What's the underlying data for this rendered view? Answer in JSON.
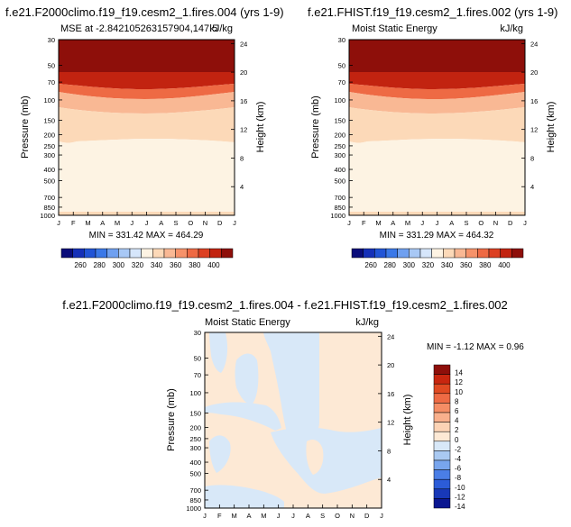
{
  "months": [
    "J",
    "F",
    "M",
    "A",
    "M",
    "J",
    "J",
    "A",
    "S",
    "O",
    "N",
    "D",
    "J"
  ],
  "pressure_ticks": [
    "30",
    "50",
    "70",
    "100",
    "150",
    "200",
    "250",
    "300",
    "400",
    "500",
    "700",
    "850",
    "1000"
  ],
  "panels": [
    {
      "title": "f.e21.F2000climo.f19_f19.cesm2_1.fires.004 (yrs 1-9)",
      "left_label": "MSE at -2.842105263157904,147.5",
      "right_label": "kJ/kg",
      "minmax": "MIN = 331.42 MAX = 464.29",
      "ylabel": "Pressure (mb)",
      "y2label": "Height (km)",
      "height_ticks": [
        "24",
        "20",
        "16",
        "12",
        "8",
        "4"
      ]
    },
    {
      "title": "f.e21.FHIST.f19_f19.cesm2_1.fires.002 (yrs 1-9)",
      "left_label": "Moist Static Energy",
      "right_label": "kJ/kg",
      "minmax": "MIN = 331.29 MAX = 464.32",
      "ylabel": "Pressure (mb)",
      "y2label": "Height (km)",
      "height_ticks": [
        "24",
        "20",
        "16",
        "12",
        "8",
        "4"
      ]
    }
  ],
  "diff_panel": {
    "title": "f.e21.F2000climo.f19_f19.cesm2_1.fires.004 - f.e21.FHIST.f19_f19.cesm2_1.fires.002",
    "left_label": "Moist Static Energy",
    "right_label": "kJ/kg",
    "minmax": "MIN = -1.12 MAX =  0.96",
    "ylabel": "Pressure (mb)",
    "y2label": "Height (km)",
    "height_ticks": [
      "24",
      "20",
      "16",
      "12",
      "8",
      "4"
    ]
  },
  "colorbar_top": {
    "labels": [
      "260",
      "280",
      "300",
      "320",
      "340",
      "360",
      "380",
      "400"
    ],
    "colors": [
      "#0a0d7a",
      "#1530b8",
      "#2154d6",
      "#3a78e8",
      "#6fa0f0",
      "#a8c8f5",
      "#d6e6fb",
      "#fdf3e3",
      "#fcd9b8",
      "#f9b894",
      "#f6926a",
      "#ee6a44",
      "#dc4022",
      "#c22310",
      "#8e0f0a"
    ]
  },
  "colorbar_diff": {
    "labels": [
      "14",
      "12",
      "10",
      "8",
      "6",
      "4",
      "2",
      "0",
      "-2",
      "-4",
      "-6",
      "-8",
      "-10",
      "-12",
      "-14"
    ],
    "colors": [
      "#8e0f0a",
      "#c8260f",
      "#e04a22",
      "#ee6a44",
      "#f58d65",
      "#f9b08c",
      "#fcd3b5",
      "#fde9d5",
      "#d8e8f8",
      "#a9c9f2",
      "#78a5ed",
      "#4a7ee6",
      "#2c5cd8",
      "#1838b8",
      "#0a1690"
    ]
  },
  "chart_data": [
    {
      "type": "heatmap",
      "title": "f.e21.F2000climo.f19_f19.cesm2_1.fires.004 (yrs 1-9)",
      "xlabel": "",
      "ylabel": "Pressure (mb)",
      "y2label": "Height (km)",
      "x": [
        "J",
        "F",
        "M",
        "A",
        "M",
        "J",
        "J",
        "A",
        "S",
        "O",
        "N",
        "D",
        "J"
      ],
      "y": [
        30,
        50,
        70,
        100,
        150,
        200,
        250,
        300,
        400,
        500,
        700,
        850,
        1000
      ],
      "units": "kJ/kg",
      "min": 331.42,
      "max": 464.29,
      "levels": [
        {
          "pressure_top": 30,
          "pressure_bottom": 60,
          "value_range": "400+"
        },
        {
          "pressure_top": 60,
          "pressure_bottom": 85,
          "value_range": "360-400"
        },
        {
          "pressure_top": 85,
          "pressure_bottom": 115,
          "value_range": "340-360"
        },
        {
          "pressure_top": 115,
          "pressure_bottom": 1000,
          "value_range": "330-340"
        }
      ]
    },
    {
      "type": "heatmap",
      "title": "f.e21.FHIST.f19_f19.cesm2_1.fires.002 (yrs 1-9)",
      "xlabel": "",
      "ylabel": "Pressure (mb)",
      "y2label": "Height (km)",
      "x": [
        "J",
        "F",
        "M",
        "A",
        "M",
        "J",
        "J",
        "A",
        "S",
        "O",
        "N",
        "D",
        "J"
      ],
      "y": [
        30,
        50,
        70,
        100,
        150,
        200,
        250,
        300,
        400,
        500,
        700,
        850,
        1000
      ],
      "units": "kJ/kg",
      "min": 331.29,
      "max": 464.32,
      "levels": [
        {
          "pressure_top": 30,
          "pressure_bottom": 60,
          "value_range": "400+"
        },
        {
          "pressure_top": 60,
          "pressure_bottom": 85,
          "value_range": "360-400"
        },
        {
          "pressure_top": 85,
          "pressure_bottom": 115,
          "value_range": "340-360"
        },
        {
          "pressure_top": 115,
          "pressure_bottom": 1000,
          "value_range": "330-340"
        }
      ]
    },
    {
      "type": "heatmap",
      "title": "f.e21.F2000climo.f19_f19.cesm2_1.fires.004 - f.e21.FHIST.f19_f19.cesm2_1.fires.002",
      "xlabel": "",
      "ylabel": "Pressure (mb)",
      "y2label": "Height (km)",
      "x": [
        "J",
        "F",
        "M",
        "A",
        "M",
        "J",
        "J",
        "A",
        "S",
        "O",
        "N",
        "D",
        "J"
      ],
      "y": [
        30,
        50,
        70,
        100,
        150,
        200,
        250,
        300,
        400,
        500,
        700,
        850,
        1000
      ],
      "units": "kJ/kg",
      "min": -1.12,
      "max": 0.96,
      "value_range": "-2 to 2"
    }
  ]
}
